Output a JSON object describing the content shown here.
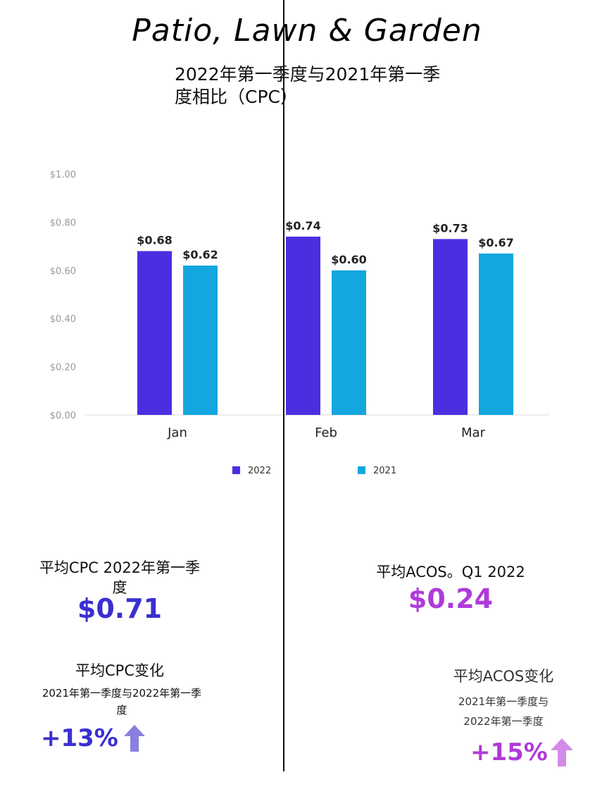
{
  "header": {
    "title": "Patio, Lawn & Garden",
    "subtitle": "2022年第一季度与2021年第一季度相比（CPC）"
  },
  "chart_data": {
    "type": "bar",
    "categories": [
      "Jan",
      "Feb",
      "Mar"
    ],
    "series": [
      {
        "name": "2022",
        "values": [
          0.68,
          0.74,
          0.73
        ],
        "labels": [
          "$0.68",
          "$0.74",
          "$0.73"
        ],
        "color": "#4a2fe0"
      },
      {
        "name": "2021",
        "values": [
          0.62,
          0.6,
          0.67
        ],
        "labels": [
          "$0.62",
          "$0.60",
          "$0.67"
        ],
        "color": "#14a6de"
      }
    ],
    "ylim": [
      0,
      1.0
    ],
    "yticks": [
      0,
      0.2,
      0.4,
      0.6,
      0.8,
      1.0
    ],
    "ytick_labels": [
      "$0.00",
      "$0.20",
      "$0.40",
      "$0.60",
      "$0.80",
      "$1.00"
    ],
    "grid": false,
    "legend": "bottom"
  },
  "stats": {
    "avg_cpc_label": "平均CPC 2022年第一季度",
    "avg_cpc_value": "$0.71",
    "avg_cpc_color": "#3a2fd0",
    "cpc_change_label": "平均CPC变化",
    "cpc_change_sub": "2021年第一季度与2022年第一季度",
    "cpc_change_value": "+13%",
    "avg_acos_label": "平均ACOS。Q1 2022",
    "avg_acos_value": "$0.24",
    "avg_acos_color": "#b03ad8",
    "acos_change_label": "平均ACOS变化",
    "acos_change_sub1": "2021年第一季度与",
    "acos_change_sub2": "2022年第一季度",
    "acos_change_value": "+15%",
    "arrow_icon": "arrow-up-icon"
  }
}
